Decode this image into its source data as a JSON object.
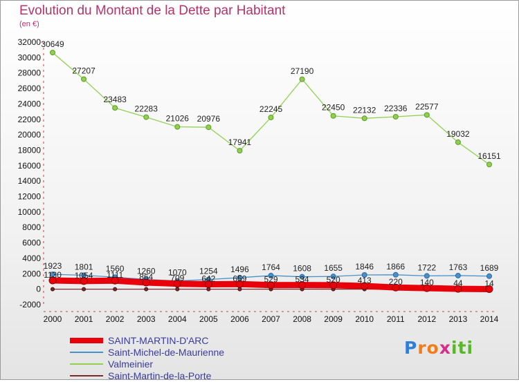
{
  "chart_data": {
    "type": "line",
    "title": "Evolution du Montant de la Dette par Habitant",
    "subtitle": "(en €)",
    "x": [
      "2000",
      "2001",
      "2002",
      "2003",
      "2004",
      "2005",
      "2006",
      "2007",
      "2008",
      "2009",
      "2010",
      "2011",
      "2012",
      "2013",
      "2014"
    ],
    "ylim": [
      -2000,
      32000
    ],
    "yticks": [
      -2000,
      0,
      2000,
      4000,
      6000,
      8000,
      10000,
      12000,
      14000,
      16000,
      18000,
      20000,
      22000,
      24000,
      26000,
      28000,
      30000,
      32000
    ],
    "grid": false,
    "legend_position": "bottom-left",
    "series": [
      {
        "name": "SAINT-MARTIN-D'ARC",
        "color": "#e8000b",
        "values": [
          1130,
          1054,
          1111,
          864,
          709,
          642,
          659,
          529,
          534,
          520,
          413,
          220,
          140,
          44,
          14
        ],
        "labels": [
          "1130",
          "1054",
          "1111",
          "864",
          "709",
          "642",
          "659",
          "529",
          "534",
          "520",
          "413",
          "220",
          "140",
          "44",
          "14"
        ]
      },
      {
        "name": "Saint-Michel-de-Maurienne",
        "color": "#4a90c8",
        "values": [
          1923,
          1801,
          1560,
          1260,
          1070,
          1254,
          1496,
          1764,
          1608,
          1655,
          1846,
          1866,
          1722,
          1763,
          1689
        ],
        "labels": [
          "1923",
          "1801",
          "1560",
          "1260",
          "1070",
          "1254",
          "1496",
          "1764",
          "1608",
          "1655",
          "1846",
          "1866",
          "1722",
          "1763",
          "1689"
        ]
      },
      {
        "name": "Valmeinier",
        "color": "#8fd14f",
        "values": [
          30649,
          27207,
          23483,
          22283,
          21026,
          20976,
          17941,
          22245,
          27190,
          22450,
          22132,
          22336,
          22577,
          19032,
          16151
        ],
        "labels": [
          "30649",
          "27207",
          "23483",
          "22283",
          "21026",
          "20976",
          "17941",
          "22245",
          "27190",
          "22450",
          "22132",
          "22336",
          "22577",
          "19032",
          "16151"
        ]
      },
      {
        "name": "Saint-Martin-de-la-Porte",
        "color": "#7a2a2a",
        "values": [
          0,
          0,
          0,
          0,
          0,
          0,
          0,
          0,
          0,
          0,
          0,
          0,
          0,
          0,
          0
        ],
        "labels": [
          "",
          "",
          "",
          "",
          "",
          "",
          "",
          "",
          "",
          "",
          "",
          "",
          "",
          "",
          ""
        ]
      }
    ]
  },
  "logo": {
    "text": "Proxiti",
    "letters": [
      "P",
      "r",
      "o",
      "x",
      "i",
      "t",
      "i"
    ],
    "colors": [
      "#2f7fd6",
      "#f07d1a",
      "#f07d1a",
      "#d82e8a",
      "#58b62b",
      "#58b62b",
      "#58b62b"
    ]
  }
}
